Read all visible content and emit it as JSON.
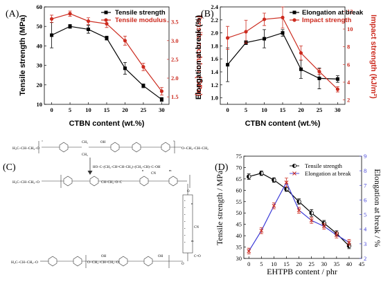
{
  "panels": {
    "A": {
      "letter": "(A)"
    },
    "B": {
      "letter": "(B)"
    },
    "C": {
      "letter": "(C)"
    },
    "D": {
      "letter": "(D)"
    }
  },
  "chart_data": [
    {
      "id": "A",
      "type": "line",
      "xlabel": "CTBN content (wt.%)",
      "ylabel": "Tensile strength (MPa)",
      "y2label": "Tensile modulus (GPa)",
      "x": [
        0,
        5,
        10,
        15,
        20,
        25,
        30
      ],
      "xticks": [
        "0",
        "5",
        "10",
        "15",
        "20",
        "25",
        "30"
      ],
      "xlim": [
        -2,
        32
      ],
      "ylim": [
        10,
        60
      ],
      "yticks": [
        10,
        20,
        30,
        40,
        50,
        60
      ],
      "y2lim": [
        1.3,
        3.9
      ],
      "y2ticks": [
        1.5,
        2.0,
        2.5,
        3.0,
        3.5
      ],
      "legend_position": "top-right",
      "series": [
        {
          "name": "Tensile strength",
          "axis": "left",
          "color": "#000000",
          "marker": "square",
          "values": [
            45.5,
            50.0,
            48.5,
            44.0,
            28.5,
            19.5,
            12.5
          ],
          "errors": [
            6.5,
            1.0,
            2.0,
            1.0,
            3.0,
            1.0,
            1.0
          ]
        },
        {
          "name": "Tensile modulus",
          "axis": "right",
          "color": "#cc2b1f",
          "marker": "circle",
          "values": [
            3.58,
            3.72,
            3.52,
            3.45,
            3.0,
            2.3,
            1.65
          ],
          "errors": [
            0.1,
            0.07,
            0.09,
            0.1,
            0.12,
            0.1,
            0.1
          ]
        }
      ]
    },
    {
      "id": "B",
      "type": "line",
      "xlabel": "CTBN content (wt.%)",
      "ylabel": "Elongation at break (%)",
      "y2label": "Impact strength (kJ/m²)",
      "x": [
        0,
        5,
        10,
        15,
        20,
        25,
        30
      ],
      "xticks": [
        "0",
        "5",
        "10",
        "15",
        "20",
        "25",
        "30"
      ],
      "xlim": [
        -2,
        32
      ],
      "ylim": [
        0.9,
        2.4
      ],
      "yticks": [
        1.0,
        1.2,
        1.4,
        1.6,
        1.8,
        2.0,
        2.2,
        2.4
      ],
      "y2lim": [
        1.5,
        12.5
      ],
      "y2ticks": [
        2,
        4,
        6,
        8,
        10,
        12
      ],
      "legend_position": "top-right",
      "series": [
        {
          "name": "Elongation at break",
          "axis": "left",
          "color": "#000000",
          "marker": "square",
          "values": [
            1.51,
            1.85,
            1.91,
            2.0,
            1.44,
            1.3,
            1.29
          ],
          "errors": [
            0.26,
            0.03,
            0.14,
            0.05,
            0.14,
            0.16,
            0.05
          ]
        },
        {
          "name": "Impact strength",
          "axis": "right",
          "color": "#cc2b1f",
          "marker": "circle",
          "values": [
            9.0,
            9.7,
            11.1,
            11.3,
            7.3,
            5.2,
            3.2
          ],
          "errors": [
            1.3,
            1.3,
            0.7,
            1.2,
            0.8,
            0.3,
            0.3
          ]
        }
      ]
    },
    {
      "id": "D",
      "type": "line",
      "xlabel": "EHTPB content / phr",
      "ylabel": "Tensile strength / MPa",
      "y2label": "Elongation at break / %",
      "x": [
        0,
        5,
        10,
        15,
        20,
        25,
        30,
        35,
        40
      ],
      "xticks": [
        "0",
        "5",
        "10",
        "15",
        "20",
        "25",
        "30",
        "35",
        "40",
        "45"
      ],
      "xtickvals": [
        0,
        5,
        10,
        15,
        20,
        25,
        30,
        35,
        40,
        45
      ],
      "xlim": [
        -2,
        45
      ],
      "ylim": [
        30,
        75
      ],
      "yticks": [
        30,
        35,
        40,
        45,
        50,
        55,
        60,
        65,
        70,
        75
      ],
      "y2lim": [
        2,
        9
      ],
      "y2ticks": [
        2,
        3,
        4,
        5,
        6,
        7,
        8,
        9
      ],
      "legend_position": "top-right",
      "series": [
        {
          "name": "Tensile strength",
          "axis": "left",
          "color": "#000000",
          "marker": "half-circle",
          "values": [
            66.0,
            67.5,
            64.5,
            60.5,
            55.0,
            50.0,
            45.5,
            41.0,
            35.5
          ],
          "errors": [
            1.2,
            1.0,
            1.0,
            1.0,
            1.2,
            1.5,
            1.2,
            1.2,
            1.2
          ]
        },
        {
          "name": "Elongation at break",
          "axis": "right",
          "color": "#cc2b1f",
          "marker": "cross",
          "line_color": "#3a3ad8",
          "values": [
            2.5,
            3.9,
            5.6,
            7.2,
            5.3,
            4.6,
            4.2,
            3.6,
            3.1
          ],
          "errors": [
            0.2,
            0.2,
            0.2,
            0.3,
            0.2,
            0.2,
            0.2,
            0.2,
            0.2
          ]
        }
      ]
    }
  ],
  "structure": {
    "dot_label": "•",
    "labels": [
      "H₂C–CH–CH₂–O",
      "CH₃",
      "CH₃",
      "OH",
      "O–CH₂–CH–CH₂",
      "HO–C–(CH₂–CH=CH–CH₂)–(CH₂–CH)–C–OH",
      "CN",
      "n",
      "m",
      "H₂C–CH–CH₂–O",
      "CH–CH₂–O–C",
      "O",
      "H₂C–CH–CH₂–O",
      "O–CH₂–CH–CH₂–O",
      "OH",
      "OH",
      "C=O",
      "CN",
      "n",
      "m",
      "O"
    ]
  }
}
